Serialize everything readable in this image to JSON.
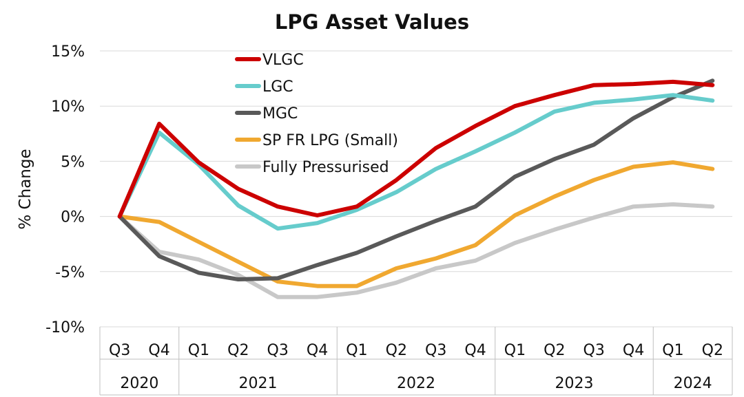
{
  "chart_data": {
    "type": "line",
    "title": "LPG Asset Values",
    "ylabel": "% Change",
    "xlabel": "",
    "ylim": [
      -10,
      15
    ],
    "yticks": [
      -10,
      -5,
      0,
      5,
      10,
      15
    ],
    "ytick_labels": [
      "-10%",
      "-5%",
      "0%",
      "5%",
      "10%",
      "15%"
    ],
    "grid": true,
    "legend_placement": "top-left",
    "categories": [
      "Q3",
      "Q4",
      "Q1",
      "Q2",
      "Q3",
      "Q4",
      "Q1",
      "Q2",
      "Q3",
      "Q4",
      "Q1",
      "Q2",
      "Q3",
      "Q4",
      "Q1",
      "Q2"
    ],
    "year_groups": [
      {
        "label": "2020",
        "count": 2
      },
      {
        "label": "2021",
        "count": 4
      },
      {
        "label": "2022",
        "count": 4
      },
      {
        "label": "2023",
        "count": 4
      },
      {
        "label": "2024",
        "count": 2
      }
    ],
    "series": [
      {
        "name": "VLGC",
        "color": "#cc0000",
        "values": [
          0,
          8.4,
          4.9,
          2.5,
          0.9,
          0.1,
          0.9,
          3.3,
          6.2,
          8.2,
          10.0,
          11.0,
          11.9,
          12.0,
          12.2,
          11.9
        ]
      },
      {
        "name": "LGC",
        "color": "#66cccc",
        "values": [
          0,
          7.6,
          4.7,
          1.0,
          -1.1,
          -0.6,
          0.6,
          2.2,
          4.3,
          5.9,
          7.6,
          9.5,
          10.3,
          10.6,
          11.0,
          10.5
        ]
      },
      {
        "name": "MGC",
        "color": "#595959",
        "values": [
          0,
          -3.6,
          -5.1,
          -5.7,
          -5.6,
          -4.4,
          -3.3,
          -1.8,
          -0.4,
          0.9,
          3.6,
          5.2,
          6.5,
          8.9,
          10.8,
          12.3
        ]
      },
      {
        "name": "SP FR LPG (Small)",
        "color": "#f0a830",
        "values": [
          0,
          -0.5,
          -2.3,
          -4.1,
          -5.9,
          -6.3,
          -6.3,
          -4.7,
          -3.8,
          -2.6,
          0.1,
          1.8,
          3.3,
          4.5,
          4.9,
          4.3
        ]
      },
      {
        "name": "Fully Pressurised",
        "color": "#c8c8c8",
        "values": [
          0,
          -3.2,
          -3.9,
          -5.3,
          -7.3,
          -7.3,
          -6.9,
          -6.0,
          -4.7,
          -4.0,
          -2.4,
          -1.2,
          -0.1,
          0.9,
          1.1,
          0.9
        ]
      }
    ]
  }
}
